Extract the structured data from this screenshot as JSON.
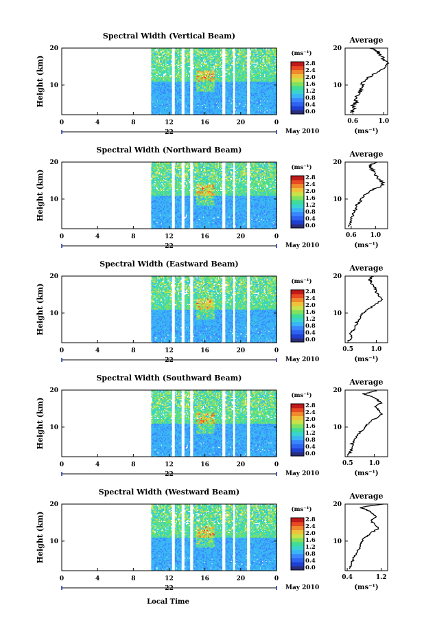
{
  "colors": {
    "cmap": [
      "#2a2d7a",
      "#1f3fd0",
      "#2d63f0",
      "#3a86ff",
      "#3ab5f5",
      "#39d3d0",
      "#3fdc9a",
      "#7fe160",
      "#c9e14a",
      "#f0c23c",
      "#f08a2c",
      "#e84a23",
      "#c21a1a"
    ]
  },
  "chart_data": [
    {
      "type": "heatmap",
      "title": "Spectral Width (Vertical Beam)",
      "ylabel": "Height (km)",
      "x_ticks": [
        "0",
        "4",
        "8",
        "12",
        "16",
        "20",
        "0"
      ],
      "y_ticks": [
        "20",
        "10"
      ],
      "xlim": [
        0,
        24
      ],
      "ylim": [
        2,
        20
      ],
      "date_label": "22",
      "month_label": "May 2010",
      "colorbar": {
        "unit": "(ms⁻¹)",
        "ticks": [
          "2.8",
          "2.4",
          "2.0",
          "1.6",
          "1.2",
          "0.8",
          "0.4",
          "0.0"
        ]
      },
      "profile": {
        "title": "Average",
        "xlabel": "(ms⁻¹)",
        "x_ticks": [
          "0.6",
          "1.0"
        ],
        "y_ticks": [
          "20",
          "10"
        ],
        "xlim": [
          0.5,
          1.05
        ],
        "ylim": [
          2,
          20
        ],
        "x": [
          0.58,
          0.62,
          0.6,
          0.65,
          0.63,
          0.68,
          0.7,
          0.72,
          0.72,
          0.75,
          0.85,
          0.9,
          1.0,
          1.05,
          1.02,
          0.98,
          0.95,
          0.92,
          0.9,
          0.85
        ],
        "y": [
          2.5,
          3.5,
          4.5,
          5.5,
          6.5,
          7.5,
          8.5,
          9.5,
          10.5,
          11.5,
          12.5,
          13.5,
          14.5,
          15.5,
          16.5,
          17.5,
          18.5,
          19.0,
          19.5,
          20.0
        ]
      }
    },
    {
      "type": "heatmap",
      "title": "Spectral Width (Northward Beam)",
      "ylabel": "Height (km)",
      "x_ticks": [
        "0",
        "4",
        "8",
        "12",
        "16",
        "20",
        "0"
      ],
      "y_ticks": [
        "20",
        "10"
      ],
      "xlim": [
        0,
        24
      ],
      "ylim": [
        2,
        20
      ],
      "date_label": "22",
      "month_label": "May 2010",
      "colorbar": {
        "unit": "(ms⁻¹)",
        "ticks": [
          "2.8",
          "2.4",
          "2.0",
          "1.6",
          "1.2",
          "0.8",
          "0.4",
          "0.0"
        ]
      },
      "profile": {
        "title": "Average",
        "xlabel": "(ms⁻¹)",
        "x_ticks": [
          "0.6",
          "1.0"
        ],
        "y_ticks": [
          "20",
          "10"
        ],
        "xlim": [
          0.5,
          1.2
        ],
        "ylim": [
          2,
          20
        ],
        "x": [
          0.55,
          0.6,
          0.58,
          0.62,
          0.64,
          0.68,
          0.7,
          0.75,
          0.78,
          0.85,
          0.95,
          1.1,
          1.12,
          1.05,
          1.0,
          0.98,
          0.92,
          0.9,
          0.95,
          1.0
        ],
        "y": [
          2.5,
          3.5,
          4.5,
          5.5,
          6.5,
          7.5,
          8.5,
          9.5,
          10.5,
          11.5,
          12.5,
          13.5,
          14.5,
          15.5,
          16.5,
          17.5,
          18.5,
          19.0,
          19.5,
          20.0
        ]
      }
    },
    {
      "type": "heatmap",
      "title": "Spectral Width (Eastward Beam)",
      "ylabel": "Height (km)",
      "x_ticks": [
        "0",
        "4",
        "8",
        "12",
        "16",
        "20",
        "0"
      ],
      "y_ticks": [
        "20",
        "10"
      ],
      "xlim": [
        0,
        24
      ],
      "ylim": [
        2,
        20
      ],
      "date_label": "22",
      "month_label": "May 2010",
      "colorbar": {
        "unit": "(ms⁻¹)",
        "ticks": [
          "2.8",
          "2.4",
          "2.0",
          "1.6",
          "1.2",
          "0.8",
          "0.4",
          "0.0"
        ]
      },
      "profile": {
        "title": "Average",
        "xlabel": "(ms⁻¹)",
        "x_ticks": [
          "0.5",
          "1.0"
        ],
        "y_ticks": [
          "20",
          "10"
        ],
        "xlim": [
          0.45,
          1.2
        ],
        "ylim": [
          2,
          20
        ],
        "x": [
          0.52,
          0.58,
          0.55,
          0.6,
          0.63,
          0.66,
          0.7,
          0.75,
          0.8,
          0.9,
          1.0,
          1.1,
          1.05,
          1.0,
          0.98,
          0.95,
          0.9,
          0.88,
          0.9,
          0.92
        ],
        "y": [
          2.5,
          3.5,
          4.5,
          5.5,
          6.5,
          7.5,
          8.5,
          9.5,
          10.5,
          11.5,
          12.5,
          13.5,
          14.5,
          15.5,
          16.5,
          17.5,
          18.5,
          19.0,
          19.5,
          20.0
        ]
      }
    },
    {
      "type": "heatmap",
      "title": "Spectral Width (Southward Beam)",
      "ylabel": "Height (km)",
      "x_ticks": [
        "0",
        "4",
        "8",
        "12",
        "16",
        "20",
        "0"
      ],
      "y_ticks": [
        "20",
        "10"
      ],
      "xlim": [
        0,
        24
      ],
      "ylim": [
        2,
        20
      ],
      "date_label": "22",
      "month_label": "May 2010",
      "colorbar": {
        "unit": "(ms⁻¹)",
        "ticks": [
          "2.8",
          "2.4",
          "2.0",
          "1.6",
          "1.2",
          "0.8",
          "0.4",
          "0.0"
        ]
      },
      "profile": {
        "title": "Average",
        "xlabel": "(ms⁻¹)",
        "x_ticks": [
          "0.5",
          "1.0"
        ],
        "y_ticks": [
          "20",
          "10"
        ],
        "xlim": [
          0.45,
          1.25
        ],
        "ylim": [
          2,
          20
        ],
        "x": [
          0.52,
          0.56,
          0.6,
          0.58,
          0.64,
          0.68,
          0.72,
          0.8,
          0.85,
          0.92,
          1.05,
          1.15,
          1.1,
          1.0,
          1.12,
          1.05,
          0.9,
          0.8,
          0.95,
          1.05
        ],
        "y": [
          2.5,
          3.5,
          4.5,
          5.5,
          6.5,
          7.5,
          8.5,
          9.5,
          10.5,
          11.5,
          12.5,
          13.5,
          14.5,
          15.5,
          16.5,
          17.5,
          18.5,
          19.0,
          19.5,
          20.0
        ]
      }
    },
    {
      "type": "heatmap",
      "title": "Spectral Width (Westward Beam)",
      "ylabel": "Height (km)",
      "x_ticks": [
        "0",
        "4",
        "8",
        "12",
        "16",
        "20",
        "0"
      ],
      "y_ticks": [
        "20",
        "10"
      ],
      "xlim": [
        0,
        24
      ],
      "ylim": [
        2,
        20
      ],
      "date_label": "22",
      "month_label": "May 2010",
      "colorbar": {
        "unit": "(ms⁻¹)",
        "ticks": [
          "2.8",
          "2.4",
          "2.0",
          "1.6",
          "1.2",
          "0.8",
          "0.4",
          "0.0"
        ]
      },
      "profile": {
        "title": "Average",
        "xlabel": "(ms⁻¹)",
        "x_ticks": [
          "0.4",
          "1.2"
        ],
        "y_ticks": [
          "20",
          "10"
        ],
        "xlim": [
          0.35,
          1.35
        ],
        "ylim": [
          2,
          20
        ],
        "x": [
          0.45,
          0.5,
          0.52,
          0.55,
          0.6,
          0.65,
          0.7,
          0.72,
          0.78,
          0.88,
          1.0,
          1.15,
          1.05,
          0.95,
          1.1,
          1.0,
          0.85,
          0.7,
          0.9,
          1.25
        ],
        "y": [
          2.5,
          3.5,
          4.5,
          5.5,
          6.5,
          7.5,
          8.5,
          9.5,
          10.5,
          11.5,
          12.5,
          13.5,
          14.5,
          15.5,
          16.5,
          17.5,
          18.5,
          19.0,
          19.5,
          20.0
        ]
      }
    }
  ],
  "footer": {
    "xlabel": "Local Time"
  }
}
